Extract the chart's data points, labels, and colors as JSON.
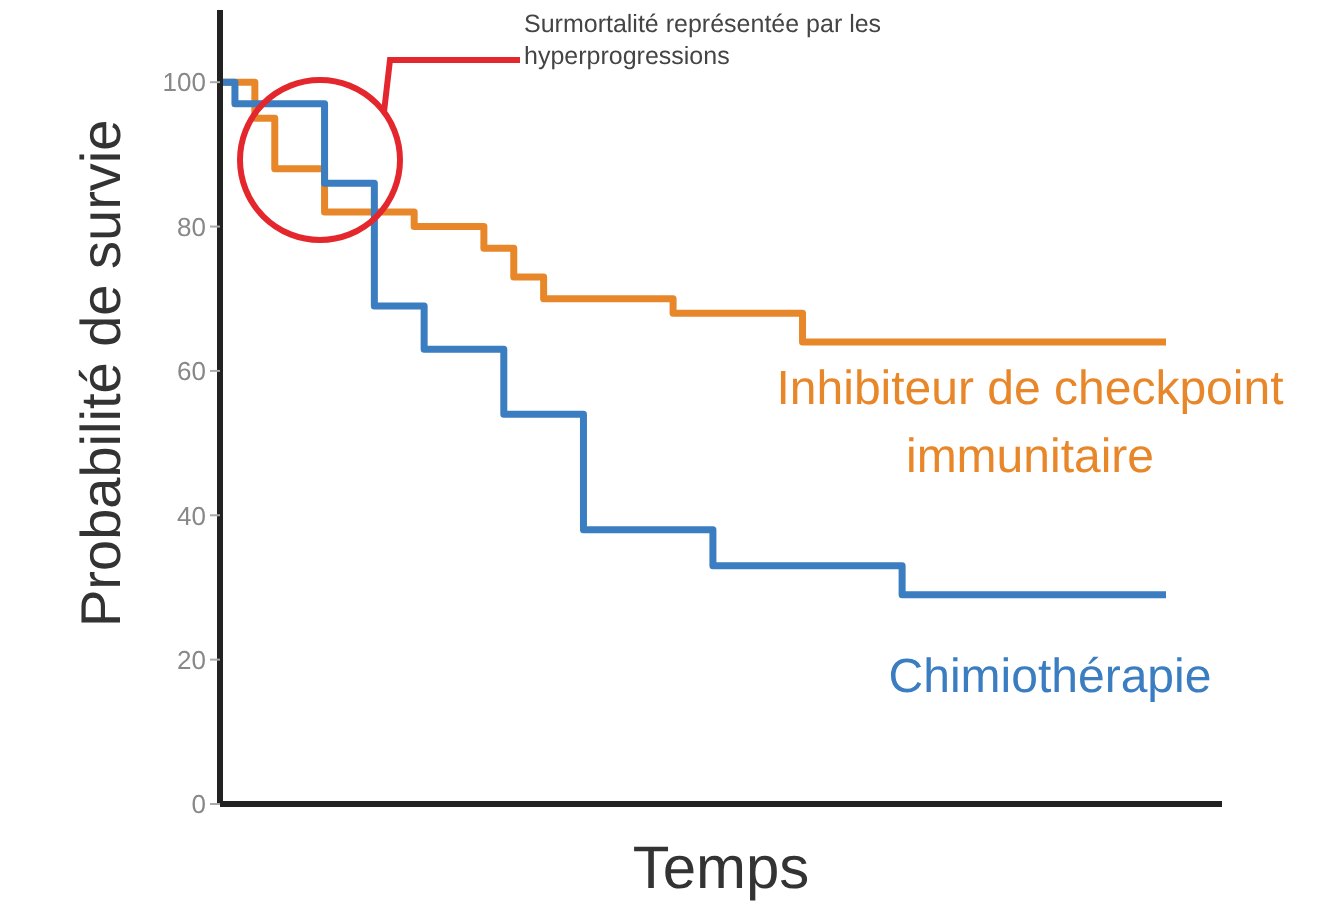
{
  "chart_data": {
    "type": "step",
    "xlabel": "Temps",
    "ylabel": "Probabilité de survie",
    "categories": [
      null,
      null,
      null,
      null,
      null,
      null,
      null,
      null,
      null,
      null,
      null,
      null,
      null,
      null,
      null,
      null,
      null,
      null,
      null,
      null,
      null,
      null,
      null,
      null,
      null,
      null,
      null,
      null,
      null,
      null,
      null,
      null,
      null,
      null,
      null,
      null,
      null,
      null,
      null,
      null,
      null,
      null,
      null,
      null,
      null,
      null,
      null,
      null,
      null,
      null,
      null,
      null,
      null,
      null,
      null,
      null,
      null,
      null,
      null,
      null,
      null,
      null,
      null,
      null,
      null,
      null,
      null,
      null,
      null,
      null,
      null,
      null,
      null,
      null,
      null,
      null,
      null,
      null,
      null,
      null,
      null,
      null,
      null,
      null,
      null,
      null,
      null,
      null,
      null,
      null,
      null,
      null,
      null,
      null,
      null,
      null
    ],
    "series": [
      {
        "name": "Inhibiteur de checkpoint immunitaire",
        "color": "#e8872a",
        "values": [
          100,
          100,
          100,
          100,
          95,
          95,
          88,
          88,
          88,
          88,
          88,
          82,
          82,
          82,
          82,
          82,
          82,
          82,
          82,
          82,
          80,
          80,
          80,
          80,
          80,
          80,
          80,
          77,
          77,
          77,
          73,
          73,
          73,
          70,
          70,
          70,
          70,
          70,
          70,
          70,
          70,
          70,
          70,
          70,
          70,
          70,
          68,
          68,
          68,
          68,
          68,
          68,
          68,
          68,
          68,
          68,
          68,
          68,
          68,
          64,
          64,
          64,
          64,
          64,
          64,
          64,
          64,
          64,
          64,
          64,
          64,
          64,
          64,
          64,
          64,
          64,
          64,
          64,
          64,
          64,
          64,
          64,
          64,
          64,
          64,
          64,
          64,
          64,
          64,
          64,
          64,
          64,
          64,
          64,
          64,
          64
        ]
      },
      {
        "name": "Chimiothérapie",
        "color": "#3a7dc0",
        "values": [
          100,
          100,
          97,
          97,
          97,
          97,
          97,
          97,
          97,
          97,
          97,
          86,
          86,
          86,
          86,
          86,
          69,
          69,
          69,
          69,
          69,
          63,
          63,
          63,
          63,
          63,
          63,
          63,
          63,
          54,
          54,
          54,
          54,
          54,
          54,
          54,
          54,
          38,
          38,
          38,
          38,
          38,
          38,
          38,
          38,
          38,
          38,
          38,
          38,
          38,
          33,
          33,
          33,
          33,
          33,
          33,
          33,
          33,
          33,
          33,
          33,
          33,
          33,
          33,
          33,
          33,
          33,
          33,
          33,
          29,
          29,
          29,
          29,
          29,
          29,
          29,
          29,
          29,
          29,
          29,
          29,
          29,
          29,
          29,
          29,
          29,
          29,
          29,
          29,
          29,
          29,
          29,
          29,
          29,
          29,
          29
        ]
      }
    ],
    "ylim": [
      0,
      110
    ],
    "yticks": [
      0,
      20,
      40,
      60,
      80,
      100
    ],
    "marker": "none",
    "line_style": "solid",
    "annotations": [
      "Surmortalité représentée par les hyperprogressions"
    ]
  }
}
